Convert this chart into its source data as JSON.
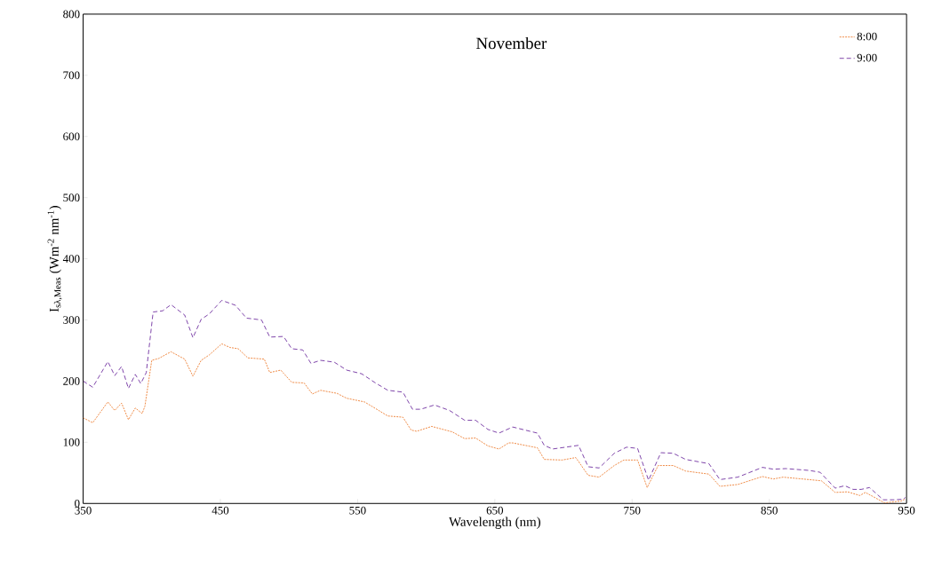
{
  "chart_data": {
    "type": "line",
    "title": "November",
    "xlabel": "Wavelength (nm)",
    "ylabel": "I$_{sλ,Meas}$ (Wm$^{-2}$ nm$^{-1}$)",
    "xlim": [
      350,
      950
    ],
    "xticks": [
      350,
      450,
      550,
      650,
      750,
      850,
      950
    ],
    "ylim": [
      0,
      800
    ],
    "yticks": [
      0,
      100,
      200,
      300,
      400,
      500,
      600,
      700,
      800
    ],
    "grid": false,
    "legend": "top right",
    "marker": "none",
    "series": [
      {
        "name": "8:00",
        "color": "#ed7d31",
        "line_style": "dotted",
        "x": [
          350,
          357,
          368,
          373,
          378,
          383,
          388,
          393,
          395,
          400,
          405,
          414,
          424,
          430,
          436,
          442,
          451,
          457,
          463,
          470,
          482,
          486,
          494,
          502,
          511,
          517,
          523,
          535,
          542,
          555,
          561,
          572,
          583,
          589,
          593,
          604,
          619,
          628,
          636,
          645,
          653,
          660,
          663,
          681,
          686,
          699,
          709,
          718,
          726,
          737,
          744,
          754,
          761,
          769,
          780,
          789,
          806,
          814,
          827,
          845,
          853,
          860,
          879,
          888,
          898,
          907,
          916,
          920,
          934,
          946,
          949
        ],
        "values": [
          140,
          132,
          166,
          152,
          164,
          137,
          156,
          147,
          159,
          234,
          237,
          248,
          236,
          208,
          234,
          243,
          261,
          255,
          253,
          238,
          236,
          214,
          218,
          198,
          197,
          179,
          185,
          180,
          172,
          166,
          158,
          143,
          141,
          120,
          118,
          126,
          117,
          106,
          107,
          94,
          89,
          99,
          99,
          91,
          72,
          71,
          75,
          46,
          43,
          62,
          71,
          71,
          26,
          62,
          62,
          53,
          48,
          28,
          31,
          44,
          40,
          43,
          39,
          37,
          18,
          19,
          13,
          18,
          1,
          4,
          7
        ]
      },
      {
        "name": "9:00",
        "color": "#7030a0",
        "line_style": "dashed",
        "x": [
          350,
          357,
          368,
          373,
          378,
          383,
          388,
          392,
          396,
          401,
          408,
          414,
          424,
          430,
          436,
          442,
          451,
          461,
          469,
          480,
          486,
          496,
          502,
          510,
          516,
          523,
          533,
          542,
          553,
          563,
          572,
          583,
          590,
          596,
          606,
          617,
          628,
          636,
          645,
          653,
          663,
          681,
          686,
          692,
          711,
          718,
          726,
          737,
          746,
          754,
          762,
          771,
          780,
          789,
          806,
          814,
          827,
          845,
          853,
          862,
          879,
          887,
          898,
          905,
          911,
          917,
          923,
          933,
          941,
          948,
          949
        ],
        "values": [
          200,
          190,
          232,
          209,
          224,
          188,
          211,
          196,
          214,
          313,
          315,
          325,
          308,
          271,
          301,
          310,
          332,
          324,
          303,
          300,
          272,
          273,
          253,
          251,
          229,
          234,
          231,
          218,
          212,
          197,
          185,
          182,
          154,
          154,
          161,
          152,
          136,
          136,
          121,
          115,
          125,
          115,
          95,
          89,
          95,
          60,
          58,
          82,
          92,
          90,
          38,
          83,
          82,
          72,
          65,
          39,
          43,
          59,
          56,
          57,
          54,
          51,
          25,
          29,
          23,
          23,
          26,
          6,
          6,
          7,
          10
        ]
      }
    ]
  }
}
